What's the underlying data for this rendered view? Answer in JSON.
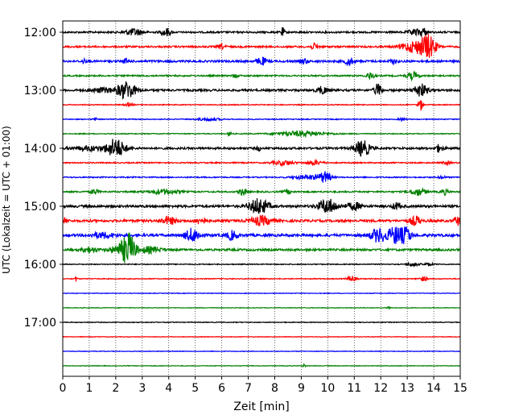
{
  "chart_data": {
    "type": "line",
    "title": "",
    "xlabel": "Zeit  [min]",
    "ylabel": "UTC (Lokalzeit = UTC + 01:00)",
    "xlim": [
      0,
      15
    ],
    "x_ticks": [
      0,
      1,
      2,
      3,
      4,
      5,
      6,
      7,
      8,
      9,
      10,
      11,
      12,
      13,
      14,
      15
    ],
    "y_ticks": [
      {
        "label": "12:00",
        "row": 0
      },
      {
        "label": "13:00",
        "row": 4
      },
      {
        "label": "14:00",
        "row": 8
      },
      {
        "label": "15:00",
        "row": 12
      },
      {
        "label": "16:00",
        "row": 16
      },
      {
        "label": "17:00",
        "row": 20
      }
    ],
    "grid_x": true,
    "trace_colors": [
      "#000000",
      "#ff0000",
      "#0000ff",
      "#008000"
    ],
    "traces": [
      {
        "start": "12:00",
        "color": "#000000",
        "noise": 0.12,
        "events": [
          [
            2.7,
            0.45,
            0.25
          ],
          [
            3.9,
            0.55,
            0.12
          ],
          [
            8.3,
            0.6,
            0.05
          ],
          [
            13.3,
            0.35,
            0.2
          ],
          [
            13.6,
            0.5,
            0.1
          ]
        ]
      },
      {
        "start": "12:15",
        "color": "#ff0000",
        "noise": 0.12,
        "events": [
          [
            13.3,
            0.8,
            0.35
          ],
          [
            13.8,
            1.4,
            0.2
          ],
          [
            9.5,
            0.4,
            0.1
          ],
          [
            6.0,
            0.3,
            0.1
          ]
        ]
      },
      {
        "start": "12:30",
        "color": "#0000ff",
        "noise": 0.14,
        "events": [
          [
            0.8,
            0.3,
            0.05
          ],
          [
            2.4,
            0.35,
            0.06
          ],
          [
            7.5,
            0.55,
            0.12
          ],
          [
            9.1,
            0.35,
            0.1
          ],
          [
            10.8,
            0.6,
            0.1
          ],
          [
            12.5,
            0.3,
            0.1
          ]
        ]
      },
      {
        "start": "12:45",
        "color": "#008000",
        "noise": 0.1,
        "events": [
          [
            11.6,
            0.5,
            0.1
          ],
          [
            13.2,
            0.5,
            0.15
          ],
          [
            6.5,
            0.25,
            0.08
          ]
        ]
      },
      {
        "start": "13:00",
        "color": "#000000",
        "noise": 0.14,
        "events": [
          [
            1.5,
            0.3,
            0.3
          ],
          [
            2.4,
            1.2,
            0.25
          ],
          [
            9.8,
            0.5,
            0.15
          ],
          [
            11.9,
            0.9,
            0.1
          ],
          [
            13.5,
            0.9,
            0.18
          ]
        ]
      },
      {
        "start": "13:15",
        "color": "#ff0000",
        "noise": 0.06,
        "events": [
          [
            2.5,
            0.25,
            0.1
          ],
          [
            13.5,
            0.8,
            0.06
          ]
        ]
      },
      {
        "start": "13:30",
        "color": "#0000ff",
        "noise": 0.06,
        "events": [
          [
            1.2,
            0.2,
            0.05
          ],
          [
            5.5,
            0.2,
            0.3
          ],
          [
            12.8,
            0.2,
            0.1
          ]
        ]
      },
      {
        "start": "13:45",
        "color": "#008000",
        "noise": 0.06,
        "events": [
          [
            6.3,
            0.3,
            0.05
          ],
          [
            9.0,
            0.35,
            0.7
          ]
        ]
      },
      {
        "start": "14:00",
        "color": "#000000",
        "noise": 0.14,
        "events": [
          [
            1.0,
            0.3,
            0.4
          ],
          [
            2.0,
            1.3,
            0.25
          ],
          [
            7.4,
            0.3,
            0.05
          ],
          [
            11.3,
            1.1,
            0.2
          ],
          [
            14.2,
            0.5,
            0.1
          ]
        ]
      },
      {
        "start": "14:15",
        "color": "#ff0000",
        "noise": 0.08,
        "events": [
          [
            8.3,
            0.3,
            0.3
          ],
          [
            9.5,
            0.3,
            0.2
          ],
          [
            14.5,
            0.2,
            0.1
          ]
        ]
      },
      {
        "start": "14:30",
        "color": "#0000ff",
        "noise": 0.08,
        "events": [
          [
            9.3,
            0.3,
            0.4
          ],
          [
            9.9,
            0.7,
            0.15
          ],
          [
            14.3,
            0.2,
            0.1
          ]
        ]
      },
      {
        "start": "14:45",
        "color": "#008000",
        "noise": 0.1,
        "events": [
          [
            1.2,
            0.4,
            0.1
          ],
          [
            3.8,
            0.3,
            0.4
          ],
          [
            6.8,
            0.5,
            0.1
          ],
          [
            8.5,
            0.3,
            0.1
          ],
          [
            13.4,
            0.5,
            0.2
          ],
          [
            14.4,
            0.4,
            0.1
          ]
        ]
      },
      {
        "start": "15:00",
        "color": "#000000",
        "noise": 0.16,
        "events": [
          [
            7.4,
            1.1,
            0.25
          ],
          [
            10.0,
            1.0,
            0.25
          ],
          [
            11.0,
            0.5,
            0.2
          ],
          [
            12.6,
            0.5,
            0.1
          ]
        ]
      },
      {
        "start": "15:15",
        "color": "#ff0000",
        "noise": 0.16,
        "events": [
          [
            0.1,
            0.5,
            0.05
          ],
          [
            4.0,
            0.5,
            0.2
          ],
          [
            5.2,
            0.4,
            0.15
          ],
          [
            7.5,
            0.6,
            0.3
          ],
          [
            13.3,
            0.6,
            0.15
          ],
          [
            14.9,
            0.6,
            0.1
          ]
        ]
      },
      {
        "start": "15:30",
        "color": "#0000ff",
        "noise": 0.18,
        "events": [
          [
            1.5,
            0.35,
            0.3
          ],
          [
            4.9,
            0.9,
            0.2
          ],
          [
            6.4,
            0.6,
            0.15
          ],
          [
            11.9,
            0.9,
            0.2
          ],
          [
            12.6,
            1.2,
            0.25
          ],
          [
            13.0,
            0.8,
            0.1
          ]
        ]
      },
      {
        "start": "15:45",
        "color": "#008000",
        "noise": 0.14,
        "events": [
          [
            1.0,
            0.4,
            0.2
          ],
          [
            2.3,
            0.9,
            0.3
          ],
          [
            2.5,
            1.6,
            0.15
          ],
          [
            3.3,
            0.4,
            0.3
          ]
        ]
      },
      {
        "start": "16:00",
        "color": "#000000",
        "noise": 0.06,
        "events": [
          [
            13.2,
            0.3,
            0.15
          ],
          [
            13.8,
            0.15,
            0.15
          ]
        ]
      },
      {
        "start": "16:15",
        "color": "#ff0000",
        "noise": 0.06,
        "events": [
          [
            0.5,
            0.4,
            0.03
          ],
          [
            10.9,
            0.4,
            0.12
          ],
          [
            13.6,
            0.3,
            0.1
          ]
        ]
      },
      {
        "start": "16:30",
        "color": "#0000ff",
        "noise": 0.04,
        "events": []
      },
      {
        "start": "16:45",
        "color": "#008000",
        "noise": 0.04,
        "events": [
          [
            12.3,
            0.2,
            0.05
          ]
        ]
      },
      {
        "start": "17:00",
        "color": "#000000",
        "noise": 0.05,
        "events": []
      },
      {
        "start": "17:15",
        "color": "#ff0000",
        "noise": 0.04,
        "events": []
      },
      {
        "start": "17:30",
        "color": "#0000ff",
        "noise": 0.04,
        "events": []
      },
      {
        "start": "17:45",
        "color": "#008000",
        "noise": 0.04,
        "events": [
          [
            9.1,
            0.3,
            0.03
          ]
        ]
      }
    ]
  }
}
